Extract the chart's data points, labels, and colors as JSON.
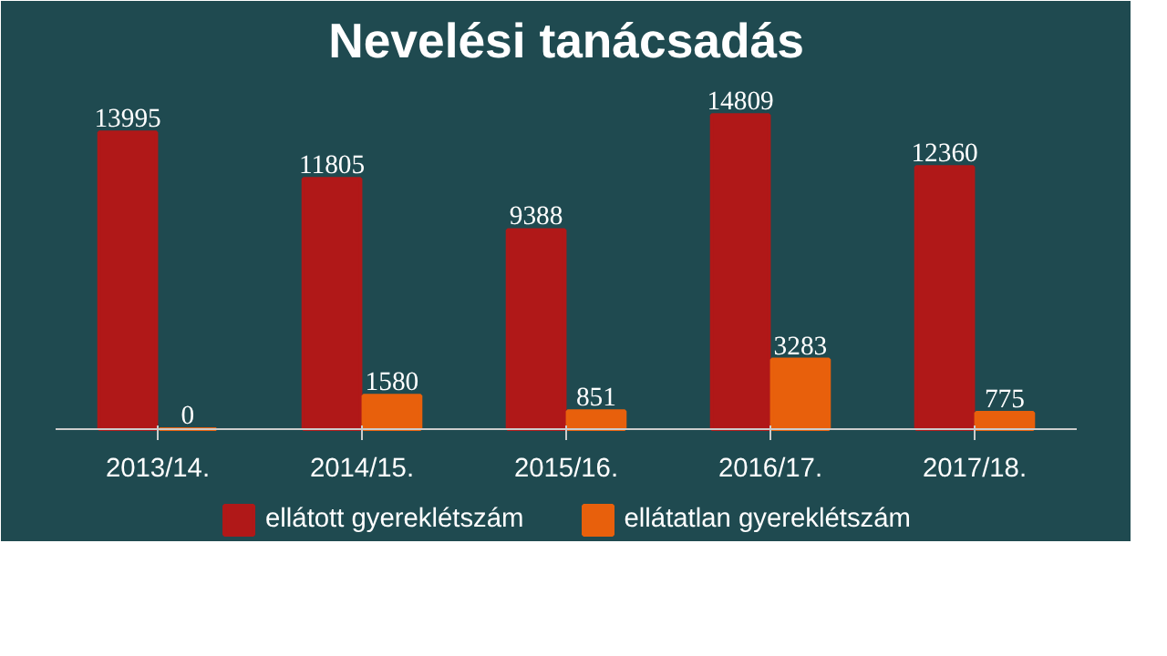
{
  "chart_data": {
    "type": "bar",
    "title": "Nevelési tanácsadás",
    "categories": [
      "2013/14.",
      "2014/15.",
      "2015/16.",
      "2016/17.",
      "2017/18."
    ],
    "series": [
      {
        "name": "ellátott gyereklétszám",
        "color": "#b01818",
        "values": [
          13995,
          11805,
          9388,
          14809,
          12360
        ]
      },
      {
        "name": "ellátatlan gyereklétszám",
        "color": "#e8600c",
        "values": [
          0,
          1580,
          851,
          3283,
          775
        ]
      }
    ],
    "data_labels": true,
    "legend": "bottom"
  }
}
